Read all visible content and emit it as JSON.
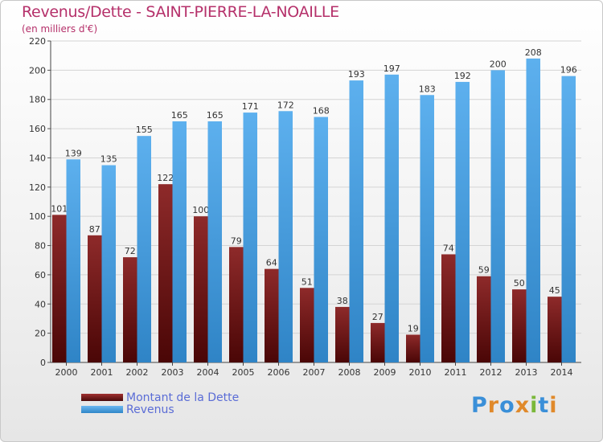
{
  "header": {
    "title": "Revenus/Dette - SAINT-PIERRE-LA-NOAILLE",
    "subtitle": "(en milliers d'€)"
  },
  "logo": {
    "text": "Proxiti"
  },
  "colors": {
    "dette": "#7a1c1c",
    "revenus": "#4aa3e8",
    "title": "#b5306a",
    "legend_text": "#5a6cd6"
  },
  "chart_data": {
    "type": "bar",
    "categories": [
      "2000",
      "2001",
      "2002",
      "2003",
      "2004",
      "2005",
      "2006",
      "2007",
      "2008",
      "2009",
      "2010",
      "2011",
      "2012",
      "2013",
      "2014"
    ],
    "series": [
      {
        "name": "Montant de la Dette",
        "values": [
          101,
          87,
          72,
          122,
          100,
          79,
          64,
          51,
          38,
          27,
          19,
          74,
          59,
          50,
          45
        ]
      },
      {
        "name": "Revenus",
        "values": [
          139,
          135,
          155,
          165,
          165,
          171,
          172,
          168,
          193,
          197,
          183,
          192,
          200,
          208,
          196
        ]
      }
    ],
    "yticks": [
      0,
      20,
      40,
      60,
      80,
      100,
      120,
      140,
      160,
      180,
      200,
      220
    ],
    "ylim": [
      0,
      220
    ],
    "grid": true,
    "legend_position": "bottom-left"
  }
}
